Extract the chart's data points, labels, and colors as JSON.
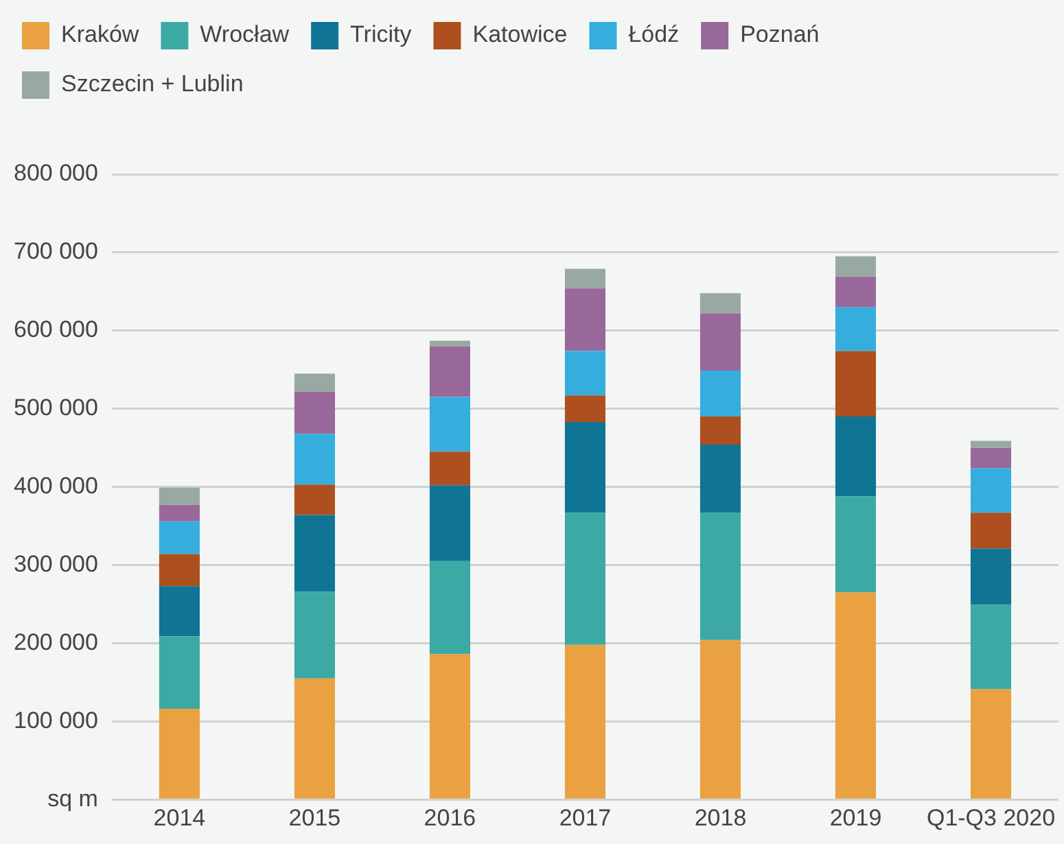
{
  "chart_data": {
    "type": "bar",
    "stacked": true,
    "categories": [
      "2014",
      "2015",
      "2016",
      "2017",
      "2018",
      "2019",
      "Q1-Q3 2020"
    ],
    "series": [
      {
        "name": "Kraków",
        "color": "#eaa142",
        "values": [
          116000,
          155000,
          186000,
          198000,
          204000,
          265000,
          141000
        ]
      },
      {
        "name": "Wrocław",
        "color": "#3ca9a5",
        "values": [
          93000,
          111000,
          119000,
          169000,
          163000,
          123000,
          108000
        ]
      },
      {
        "name": "Tricity",
        "color": "#107494",
        "values": [
          64000,
          98000,
          97000,
          116000,
          87000,
          102000,
          72000
        ]
      },
      {
        "name": "Katowice",
        "color": "#ae4f1f",
        "values": [
          41000,
          39000,
          43000,
          34000,
          36000,
          84000,
          46000
        ]
      },
      {
        "name": "Łódź",
        "color": "#35aede",
        "values": [
          42000,
          65000,
          70000,
          57000,
          59000,
          56000,
          57000
        ]
      },
      {
        "name": "Poznań",
        "color": "#99689a",
        "values": [
          21000,
          54000,
          65000,
          80000,
          73000,
          39000,
          26000
        ]
      },
      {
        "name": "Szczecin + Lublin",
        "color": "#98a9a2",
        "values": [
          22000,
          23000,
          7000,
          25000,
          26000,
          26000,
          9000
        ]
      }
    ],
    "ylim": [
      0,
      800000
    ],
    "yticks": [
      {
        "value": 0,
        "label": "sq m"
      },
      {
        "value": 100000,
        "label": "100 000"
      },
      {
        "value": 200000,
        "label": "200 000"
      },
      {
        "value": 300000,
        "label": "300 000"
      },
      {
        "value": 400000,
        "label": "400 000"
      },
      {
        "value": 500000,
        "label": "500 000"
      },
      {
        "value": 600000,
        "label": "600 000"
      },
      {
        "value": 700000,
        "label": "700 000"
      },
      {
        "value": 800000,
        "label": "800 000"
      }
    ],
    "grid": "y",
    "legend": "top left"
  }
}
